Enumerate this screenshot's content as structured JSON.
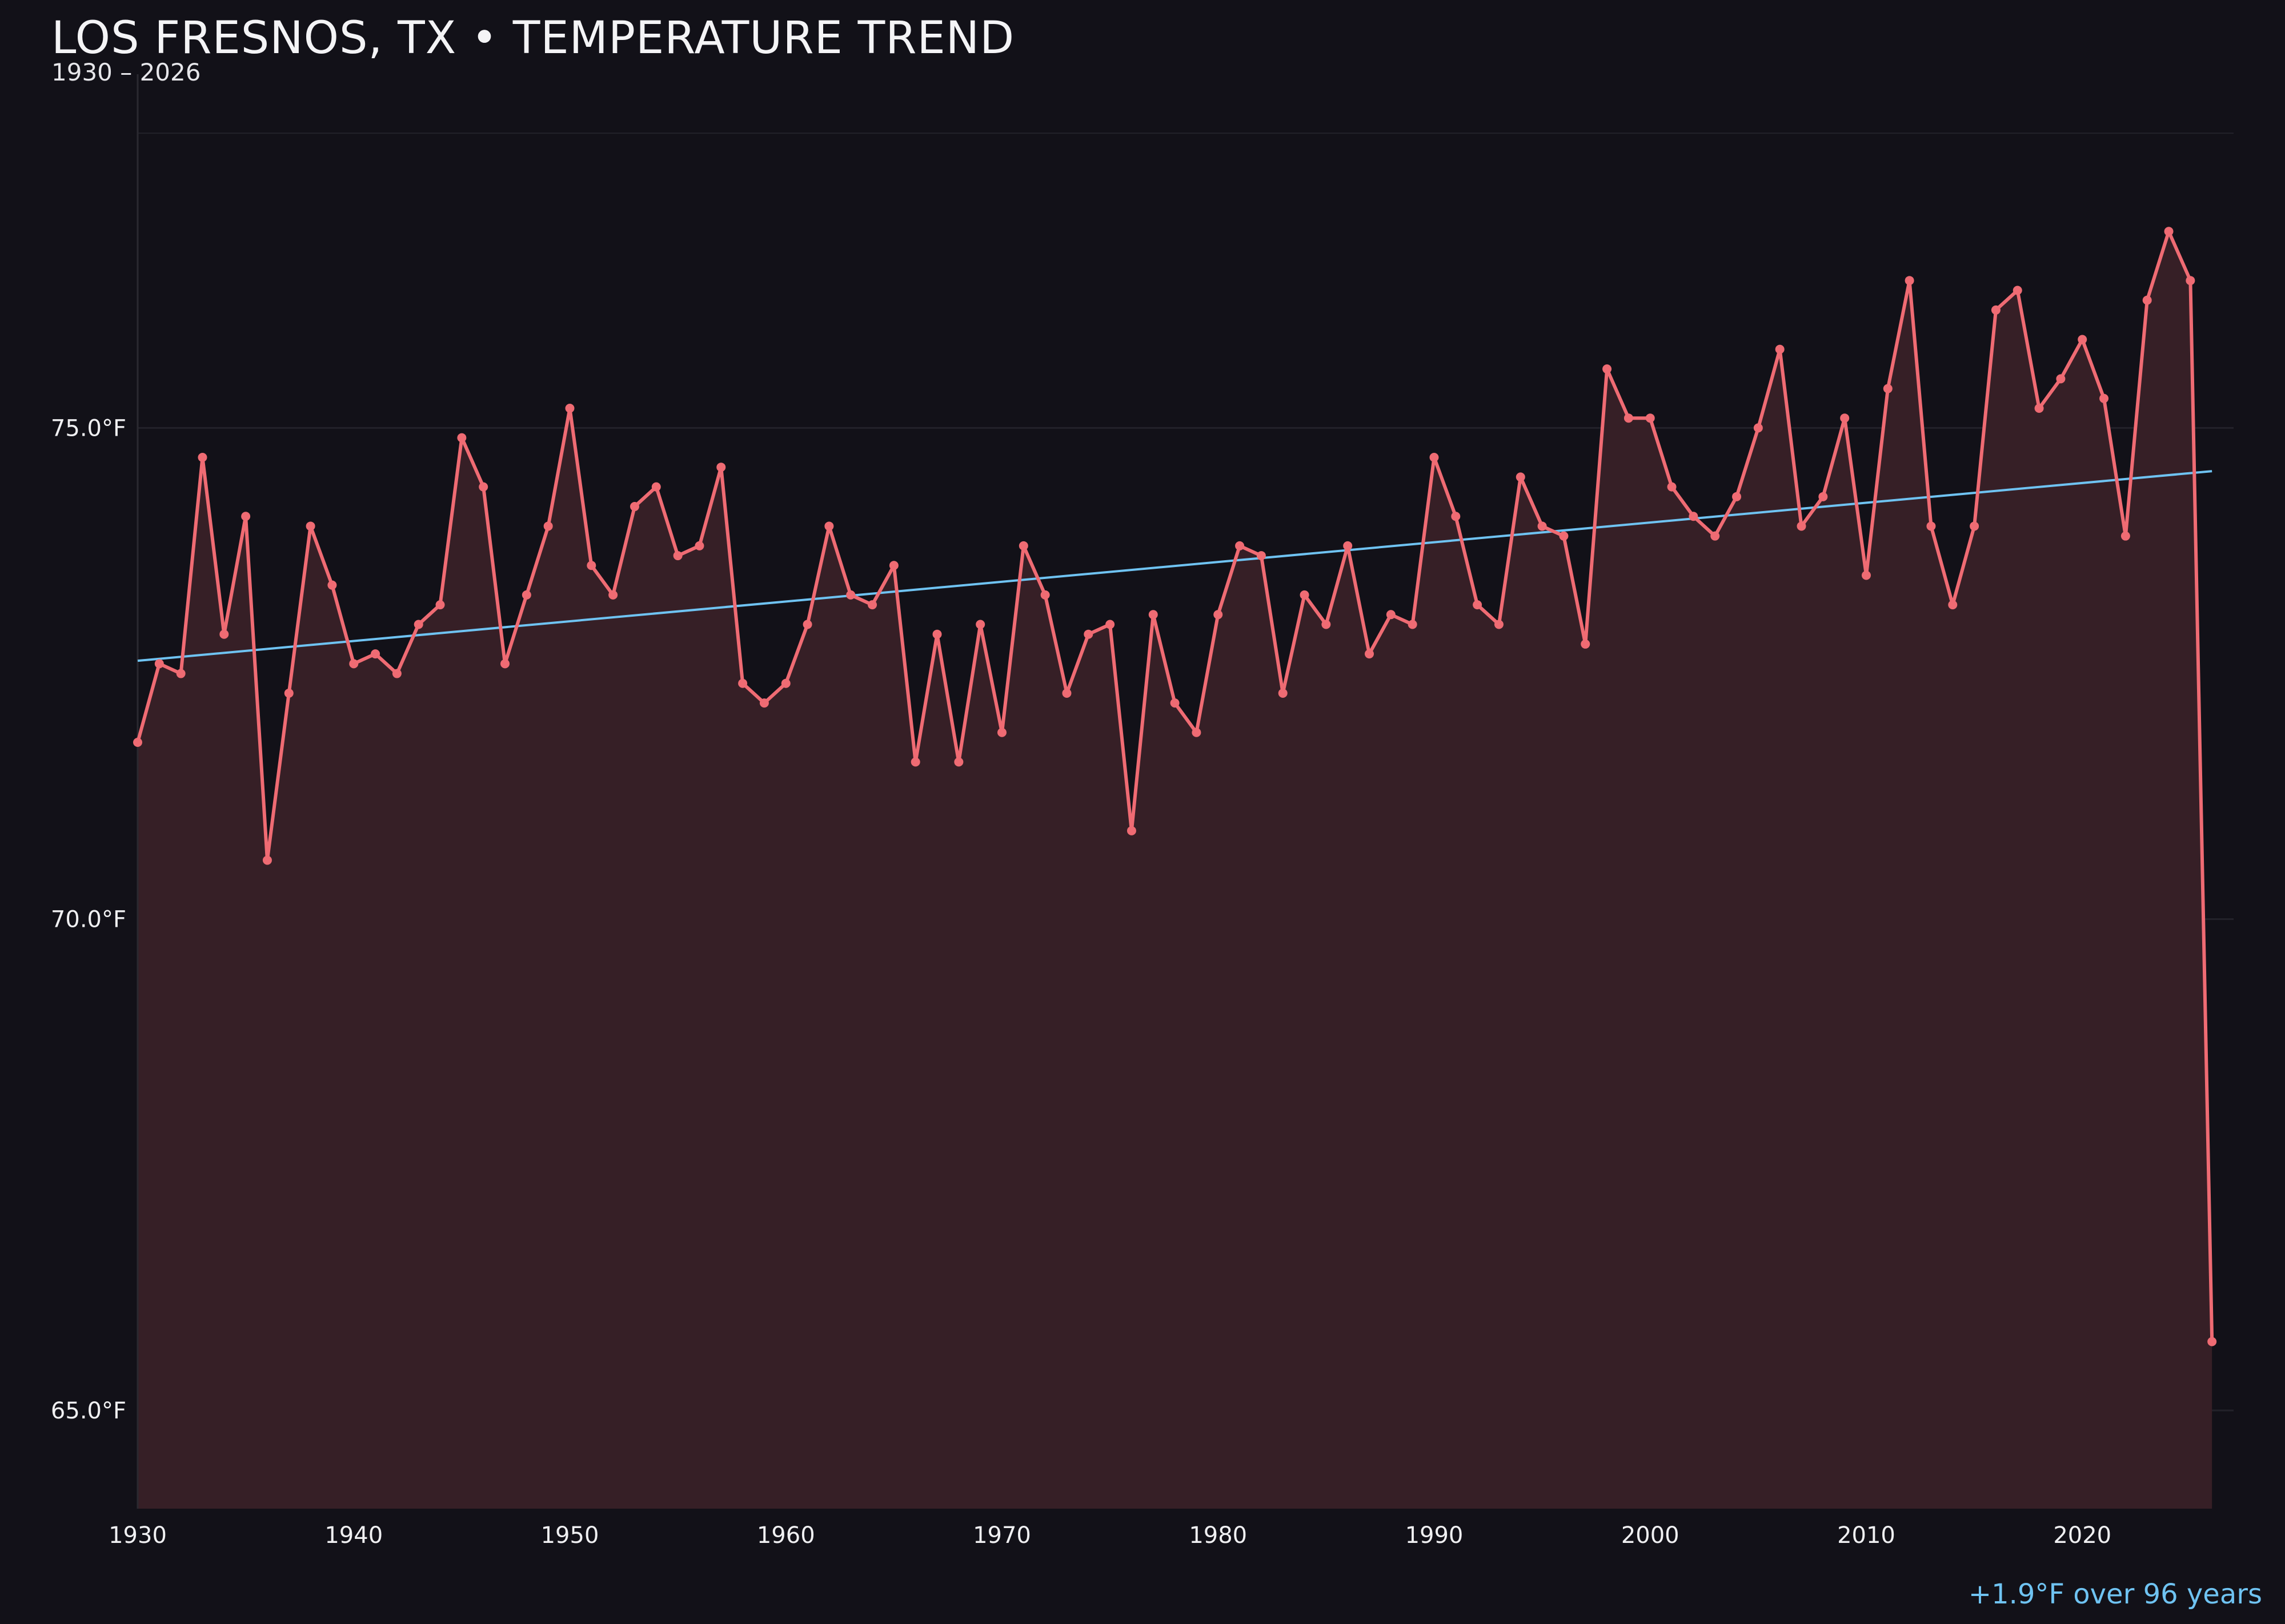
{
  "header": {
    "title": "LOS FRESNOS, TX • TEMPERATURE TREND",
    "subtitle": "1930 – 2026"
  },
  "footer": {
    "note": "+1.9°F over 96 years"
  },
  "colors": {
    "background": "#121118",
    "series_line": "#ef6b73",
    "area_fill": "#361f26",
    "trend_line": "#6fc3f2",
    "grid": "#23222a",
    "text": "#f0f0f2"
  },
  "chart_data": {
    "type": "line",
    "title": "LOS FRESNOS, TX • TEMPERATURE TREND",
    "subtitle": "1930 – 2026",
    "xlabel": "",
    "ylabel": "",
    "xlim": [
      1930,
      2027
    ],
    "ylim": [
      64.0,
      78.6
    ],
    "grid": true,
    "y_ticks": [
      65.0,
      70.0,
      75.0
    ],
    "y_tick_labels": [
      "65.0°F",
      "70.0°F",
      "75.0°F"
    ],
    "x_ticks": [
      1930,
      1940,
      1950,
      1960,
      1970,
      1980,
      1990,
      2000,
      2010,
      2020
    ],
    "x_tick_labels": [
      "1930",
      "1940",
      "1950",
      "1960",
      "1970",
      "1980",
      "1990",
      "2000",
      "2010",
      "2020"
    ],
    "x": [
      1930,
      1931,
      1932,
      1933,
      1934,
      1935,
      1936,
      1937,
      1938,
      1939,
      1940,
      1941,
      1942,
      1943,
      1944,
      1945,
      1946,
      1947,
      1948,
      1949,
      1950,
      1951,
      1952,
      1953,
      1954,
      1955,
      1956,
      1957,
      1958,
      1959,
      1960,
      1961,
      1962,
      1963,
      1964,
      1965,
      1966,
      1967,
      1968,
      1969,
      1970,
      1971,
      1972,
      1973,
      1974,
      1975,
      1976,
      1977,
      1978,
      1979,
      1980,
      1981,
      1982,
      1983,
      1984,
      1985,
      1986,
      1987,
      1988,
      1989,
      1990,
      1991,
      1992,
      1993,
      1994,
      1995,
      1996,
      1997,
      1998,
      1999,
      2000,
      2001,
      2002,
      2003,
      2004,
      2005,
      2006,
      2007,
      2008,
      2009,
      2010,
      2011,
      2012,
      2013,
      2014,
      2015,
      2016,
      2017,
      2018,
      2019,
      2020,
      2021,
      2022,
      2023,
      2024,
      2025,
      2026
    ],
    "series": [
      {
        "values": [
          71.8,
          72.6,
          72.5,
          74.7,
          72.9,
          74.1,
          70.6,
          72.3,
          74.0,
          73.4,
          72.6,
          72.7,
          72.5,
          73.0,
          73.2,
          74.9,
          74.4,
          72.6,
          73.3,
          74.0,
          75.2,
          73.6,
          73.3,
          74.2,
          74.4,
          73.7,
          73.8,
          74.6,
          72.4,
          72.2,
          72.4,
          73.0,
          74.0,
          73.3,
          73.2,
          73.6,
          71.6,
          72.9,
          71.6,
          73.0,
          71.9,
          73.8,
          73.3,
          72.3,
          72.9,
          73.0,
          70.9,
          73.1,
          72.2,
          71.9,
          73.1,
          73.8,
          73.7,
          72.3,
          73.3,
          73.0,
          73.8,
          72.7,
          73.1,
          73.0,
          74.7,
          74.1,
          73.2,
          73.0,
          74.5,
          74.0,
          73.9,
          72.8,
          75.6,
          75.1,
          75.1,
          74.4,
          74.1,
          73.9,
          74.3,
          75.0,
          75.8,
          74.0,
          74.3,
          75.1,
          73.5,
          75.4,
          76.5,
          74.0,
          73.2,
          74.0,
          76.2,
          76.4,
          75.2,
          75.5,
          75.9,
          75.3,
          73.9,
          76.3,
          77.0,
          76.5,
          65.7
        ]
      }
    ],
    "trend": {
      "x": [
        1930,
        2026
      ],
      "values": [
        72.63,
        74.56
      ]
    }
  }
}
